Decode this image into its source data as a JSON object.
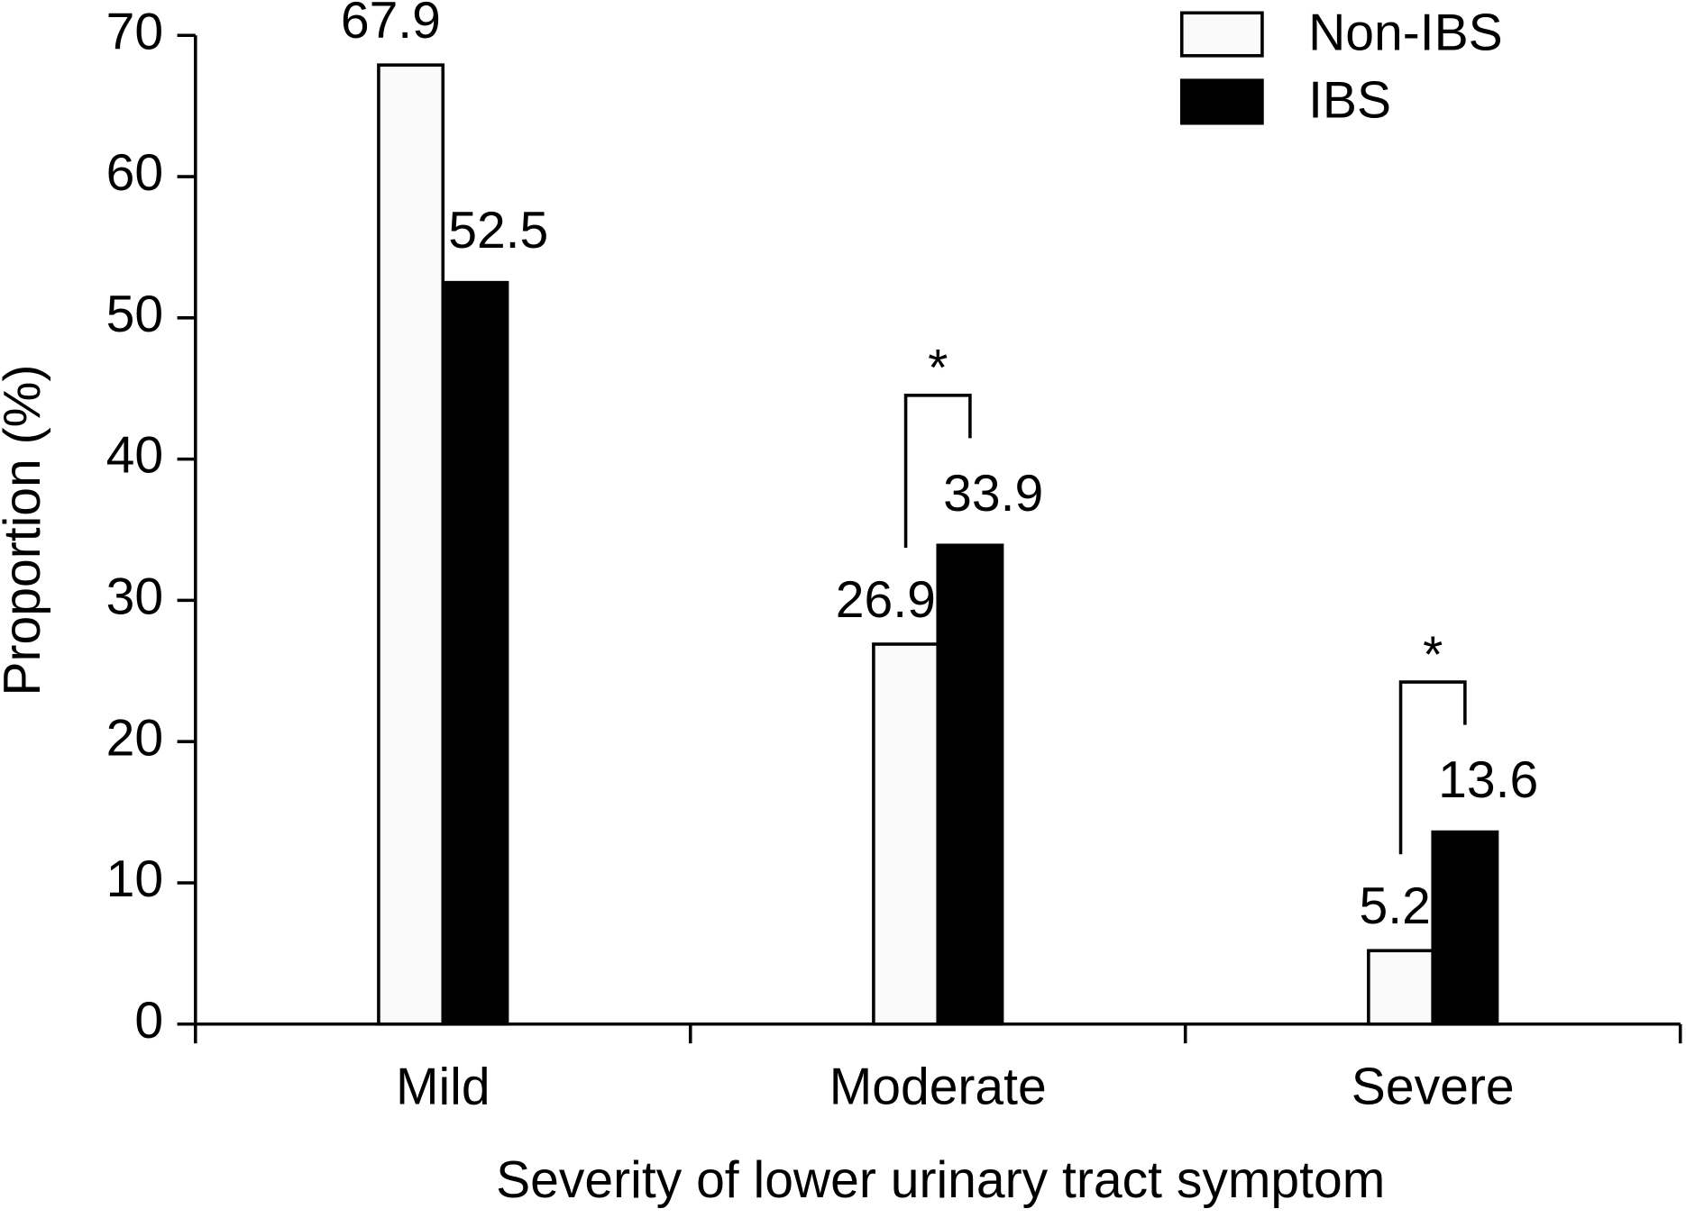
{
  "chart_data": {
    "type": "bar",
    "x_label": "Severity of lower urinary tract symptom",
    "y_label": "Proportion (%)",
    "categories": [
      "Mild",
      "Moderate",
      "Severe"
    ],
    "series": [
      {
        "name": "Non-IBS",
        "color": "#fafafa",
        "values": [
          67.9,
          26.9,
          5.2
        ]
      },
      {
        "name": "IBS",
        "color": "#000000",
        "values": [
          52.5,
          33.9,
          13.6
        ]
      }
    ],
    "significance": [
      null,
      "*",
      "*"
    ],
    "ylim": [
      0,
      70
    ],
    "yticks": [
      0,
      10,
      20,
      30,
      40,
      50,
      60,
      70
    ],
    "legend": "top-right",
    "grid": false
  }
}
